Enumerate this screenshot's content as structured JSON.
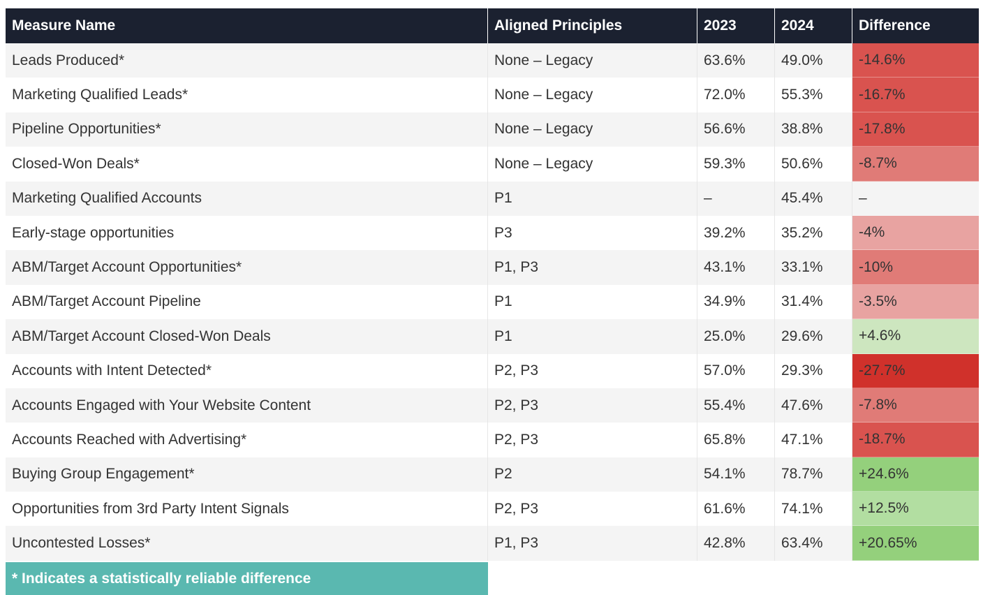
{
  "table": {
    "headers": [
      "Measure Name",
      "Aligned Principles",
      "2023",
      "2024",
      "Difference"
    ],
    "rows": [
      {
        "measure": "Leads Produced*",
        "principles": "None – Legacy",
        "y2023": "63.6%",
        "y2024": "49.0%",
        "difference": "-14.6%",
        "diff_color": "#d9534f"
      },
      {
        "measure": "Marketing Qualified Leads*",
        "principles": "None – Legacy",
        "y2023": "72.0%",
        "y2024": "55.3%",
        "difference": "-16.7%",
        "diff_color": "#d9534f"
      },
      {
        "measure": "Pipeline Opportunities*",
        "principles": "None – Legacy",
        "y2023": "56.6%",
        "y2024": "38.8%",
        "difference": "-17.8%",
        "diff_color": "#d9534f"
      },
      {
        "measure": "Closed-Won Deals*",
        "principles": "None – Legacy",
        "y2023": "59.3%",
        "y2024": "50.6%",
        "difference": "-8.7%",
        "diff_color": "#e07b77"
      },
      {
        "measure": "Marketing Qualified Accounts",
        "principles": "P1",
        "y2023": "–",
        "y2024": "45.4%",
        "difference": "–",
        "diff_color": ""
      },
      {
        "measure": "Early-stage opportunities",
        "principles": "P3",
        "y2023": "39.2%",
        "y2024": "35.2%",
        "difference": "-4%",
        "diff_color": "#e8a3a1"
      },
      {
        "measure": "ABM/Target Account Opportunities*",
        "principles": "P1, P3",
        "y2023": "43.1%",
        "y2024": "33.1%",
        "difference": "-10%",
        "diff_color": "#e07b77"
      },
      {
        "measure": "ABM/Target Account Pipeline",
        "principles": "P1",
        "y2023": "34.9%",
        "y2024": "31.4%",
        "difference": "-3.5%",
        "diff_color": "#e8a3a1"
      },
      {
        "measure": "ABM/Target Account Closed-Won Deals",
        "principles": "P1",
        "y2023": "25.0%",
        "y2024": "29.6%",
        "difference": "+4.6%",
        "diff_color": "#cde6bf"
      },
      {
        "measure": "Accounts with Intent Detected*",
        "principles": "P2, P3",
        "y2023": "57.0%",
        "y2024": "29.3%",
        "difference": "-27.7%",
        "diff_color": "#d0312b"
      },
      {
        "measure": "Accounts Engaged with Your Website Content",
        "principles": "P2, P3",
        "y2023": "55.4%",
        "y2024": "47.6%",
        "difference": "-7.8%",
        "diff_color": "#e07b77"
      },
      {
        "measure": "Accounts Reached with Advertising*",
        "principles": "P2, P3",
        "y2023": "65.8%",
        "y2024": "47.1%",
        "difference": "-18.7%",
        "diff_color": "#d9534f"
      },
      {
        "measure": "Buying Group Engagement*",
        "principles": "P2",
        "y2023": "54.1%",
        "y2024": "78.7%",
        "difference": "+24.6%",
        "diff_color": "#94d07c"
      },
      {
        "measure": "Opportunities from 3rd Party Intent Signals",
        "principles": "P2, P3",
        "y2023": "61.6%",
        "y2024": "74.1%",
        "difference": "+12.5%",
        "diff_color": "#b2dea1"
      },
      {
        "measure": "Uncontested Losses*",
        "principles": "P1, P3",
        "y2023": "42.8%",
        "y2024": "63.4%",
        "difference": "+20.65%",
        "diff_color": "#94d07c"
      }
    ]
  },
  "footnote": "* Indicates a statistically reliable difference",
  "colors": {
    "header_bg": "#1b2130",
    "footnote_bg": "#5ab8b0"
  }
}
